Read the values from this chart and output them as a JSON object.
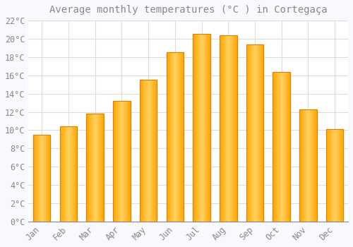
{
  "title": "Average monthly temperatures (°C ) in Cortegaça",
  "months": [
    "Jan",
    "Feb",
    "Mar",
    "Apr",
    "May",
    "Jun",
    "Jul",
    "Aug",
    "Sep",
    "Oct",
    "Nov",
    "Dec"
  ],
  "values": [
    9.5,
    10.4,
    11.8,
    13.2,
    15.5,
    18.5,
    20.5,
    20.4,
    19.4,
    16.4,
    12.3,
    10.1
  ],
  "bar_color_light": "#FFD060",
  "bar_color_main": "#FFA500",
  "bar_edge_color": "#E08000",
  "background_color": "#F8F8FF",
  "plot_bg_color": "#FFFFFF",
  "grid_color": "#DDDDDD",
  "text_color": "#888888",
  "ylim": [
    0,
    22
  ],
  "yticks": [
    0,
    2,
    4,
    6,
    8,
    10,
    12,
    14,
    16,
    18,
    20,
    22
  ],
  "title_fontsize": 10,
  "tick_fontsize": 8.5,
  "font_family": "monospace"
}
